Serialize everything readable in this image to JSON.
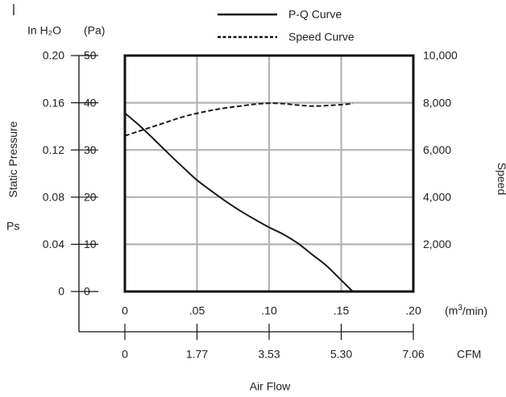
{
  "chart_data": {
    "type": "line",
    "title": "",
    "legend": {
      "placement": "top",
      "items": [
        {
          "label": "P-Q Curve",
          "style": "solid"
        },
        {
          "label": "Speed Curve",
          "style": "dotted"
        }
      ]
    },
    "x_axis": {
      "label": "Air Flow",
      "unit_primary": "(m3/min)",
      "range": [
        0,
        0.2
      ],
      "ticks_primary": [
        ".05",
        ".10",
        ".15",
        ".20"
      ],
      "ticks_primary_values": [
        0.05,
        0.1,
        0.15,
        0.2
      ],
      "zero_label": "0",
      "unit_secondary": "CFM",
      "ticks_secondary": [
        "0",
        "1.77",
        "3.53",
        "5.30",
        "7.06"
      ]
    },
    "y_axis_left": {
      "label": "Static Pressure",
      "sub_label": "Ps",
      "unit_inh2o": "In H₂O",
      "unit_pa": "(Pa)",
      "range": [
        0,
        50
      ],
      "ticks_pa": [
        "0",
        "10",
        "20",
        "30",
        "40",
        "50"
      ],
      "ticks_pa_values": [
        0,
        10,
        20,
        30,
        40,
        50
      ],
      "ticks_inh2o": [
        "0",
        "0.04",
        "0.08",
        "0.12",
        "0.16",
        "0.20"
      ]
    },
    "y_axis_right": {
      "label": "Speed",
      "range": [
        0,
        10000
      ],
      "ticks": [
        "2,000",
        "4,000",
        "6,000",
        "8,000",
        "10,000"
      ],
      "ticks_values": [
        2000,
        4000,
        6000,
        8000,
        10000
      ]
    },
    "grid": true,
    "series": [
      {
        "name": "P-Q Curve",
        "axis": "left",
        "x": [
          0,
          0.01,
          0.02,
          0.03,
          0.04,
          0.05,
          0.06,
          0.07,
          0.08,
          0.09,
          0.1,
          0.11,
          0.12,
          0.13,
          0.14,
          0.15,
          0.158
        ],
        "y": [
          37.8,
          35.2,
          32.3,
          29.3,
          26.4,
          23.6,
          21.3,
          19.1,
          17.1,
          15.3,
          13.6,
          12.1,
          10.2,
          7.8,
          5.4,
          2.4,
          0
        ]
      },
      {
        "name": "Speed Curve",
        "axis": "right",
        "x": [
          0,
          0.01,
          0.02,
          0.03,
          0.04,
          0.05,
          0.06,
          0.07,
          0.08,
          0.09,
          0.1,
          0.11,
          0.12,
          0.13,
          0.14,
          0.15,
          0.158
        ],
        "y": [
          6600,
          6800,
          7000,
          7200,
          7400,
          7550,
          7680,
          7780,
          7860,
          7940,
          7980,
          7960,
          7900,
          7860,
          7880,
          7920,
          7960
        ]
      }
    ]
  }
}
